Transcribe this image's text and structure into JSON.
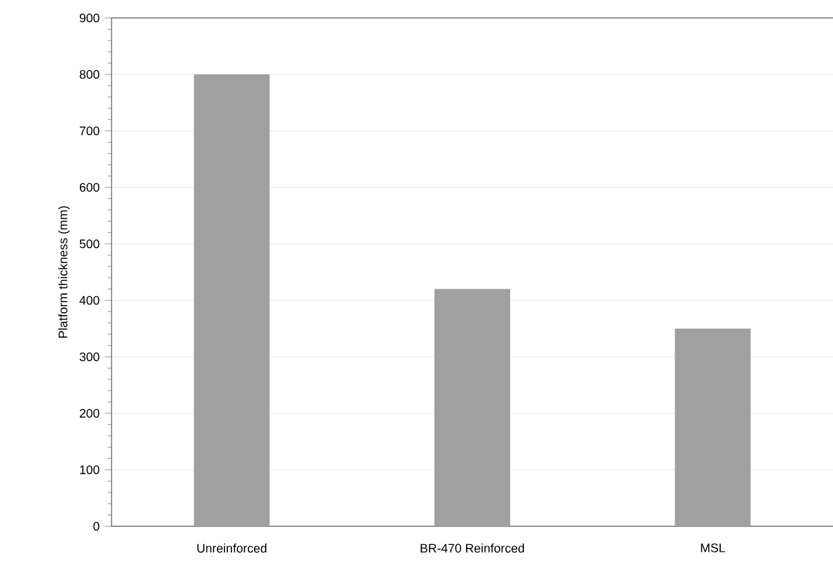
{
  "chart_data": {
    "type": "bar",
    "ylabel": "Platform thickness (mm)",
    "categories": [
      "Unreinforced",
      "BR-470 Reinforced",
      "MSL"
    ],
    "values": [
      800,
      420,
      350
    ],
    "color": "#a0a0a0",
    "ylim": [
      0,
      900
    ],
    "yticks": [
      0,
      100,
      200,
      300,
      400,
      500,
      600,
      700,
      800,
      900
    ],
    "grid": "y"
  }
}
